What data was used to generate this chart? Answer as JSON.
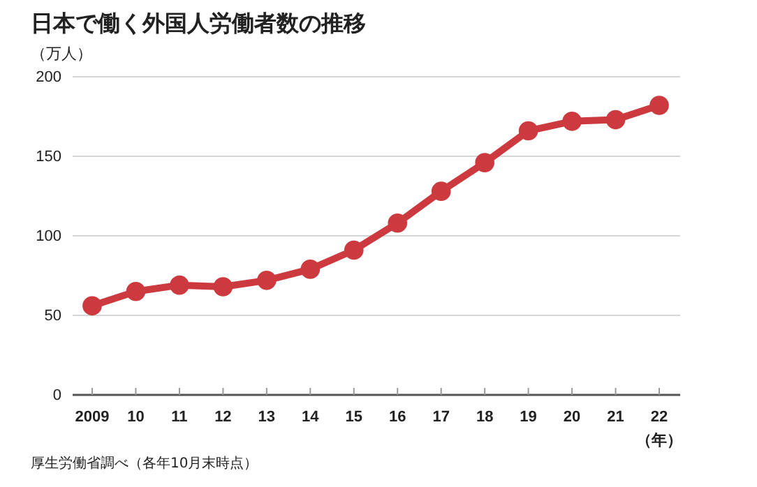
{
  "chart_data": {
    "type": "line",
    "title": "日本で働く外国人労働者数の推移",
    "ylabel": "（万人）",
    "xlabel": "（年）",
    "categories": [
      "2009",
      "10",
      "11",
      "12",
      "13",
      "14",
      "15",
      "16",
      "17",
      "18",
      "19",
      "20",
      "21",
      "22"
    ],
    "series": [
      {
        "color": "#cc3a3f",
        "values": [
          56,
          65,
          69,
          68,
          72,
          79,
          91,
          108,
          128,
          146,
          166,
          172,
          173,
          182
        ]
      }
    ],
    "ylim": [
      0,
      200
    ],
    "yticks": [
      0,
      50,
      100,
      150,
      200
    ],
    "grid": "y",
    "marker": "circle",
    "line_style": "solid",
    "annotations": [
      "厚生労働省調べ（各年10月末時点）"
    ]
  }
}
